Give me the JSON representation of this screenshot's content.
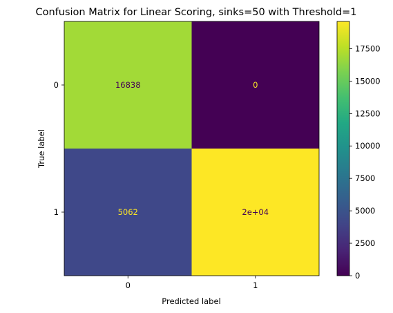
{
  "chart_data": {
    "type": "heatmap",
    "title": "Confusion Matrix for Linear Scoring, sinks=50 with Threshold=1",
    "xlabel": "Predicted label",
    "ylabel": "True label",
    "x_ticks": [
      "0",
      "1"
    ],
    "y_ticks": [
      "0",
      "1"
    ],
    "values": [
      [
        16838,
        0
      ],
      [
        5062,
        19600
      ]
    ],
    "cell_labels": [
      [
        "16838",
        "0"
      ],
      [
        "5062",
        "2e+04"
      ]
    ],
    "colormap": "viridis",
    "colorbar": {
      "vmin": 0,
      "vmax": 19600,
      "ticks": [
        0,
        2500,
        5000,
        7500,
        10000,
        12500,
        15000,
        17500
      ]
    },
    "colors": {
      "cell_00": "#a2da37",
      "cell_01": "#440154",
      "cell_10": "#3f4889",
      "cell_11": "#fde725",
      "label_dark": "#440154",
      "label_light": "#fde725"
    }
  }
}
